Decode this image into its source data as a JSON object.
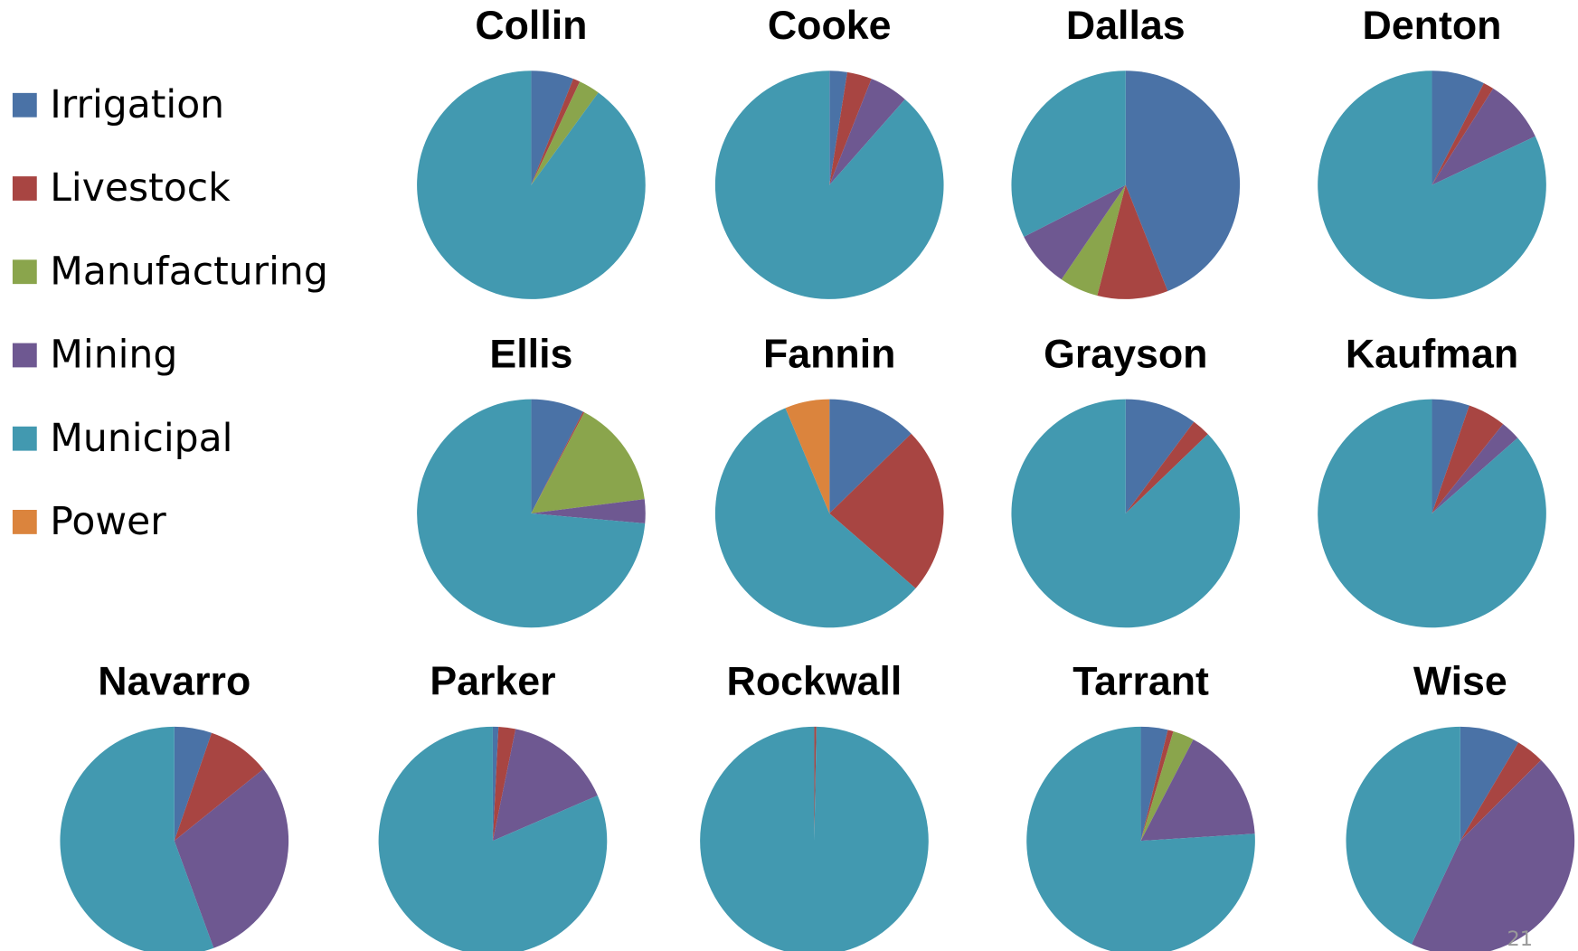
{
  "legend": {
    "categories": [
      "Irrigation",
      "Livestock",
      "Manufacturing",
      "Mining",
      "Municipal",
      "Power"
    ],
    "colors": [
      "#4a72a6",
      "#a84542",
      "#8aa54c",
      "#6e5891",
      "#4299b0",
      "#db843d"
    ]
  },
  "chart_data": [
    {
      "type": "pie",
      "title": "Collin",
      "values": [
        6,
        1,
        3,
        0,
        90,
        0
      ]
    },
    {
      "type": "pie",
      "title": "Cooke",
      "values": [
        2.5,
        3.5,
        0,
        5.5,
        88.5,
        0
      ]
    },
    {
      "type": "pie",
      "title": "Dallas",
      "values": [
        44,
        10,
        5.5,
        8,
        32.5,
        0
      ]
    },
    {
      "type": "pie",
      "title": "Denton",
      "values": [
        7.5,
        1.5,
        0,
        9,
        82,
        0
      ]
    },
    {
      "type": "pie",
      "title": "Ellis",
      "values": [
        7.5,
        0.2,
        15.3,
        3.4,
        73.6,
        0
      ]
    },
    {
      "type": "pie",
      "title": "Fannin",
      "values": [
        12.7,
        23.7,
        0,
        0,
        57.3,
        6.3
      ]
    },
    {
      "type": "pie",
      "title": "Grayson",
      "values": [
        10.2,
        2.6,
        0,
        0,
        87.2,
        0
      ]
    },
    {
      "type": "pie",
      "title": "Kaufman",
      "values": [
        5.3,
        5.4,
        0,
        2.8,
        86.5,
        0
      ]
    },
    {
      "type": "pie",
      "title": "Navarro",
      "values": [
        5.3,
        8.9,
        0,
        30.2,
        55.6,
        0
      ]
    },
    {
      "type": "pie",
      "title": "Parker",
      "values": [
        0.8,
        2.4,
        0,
        15.3,
        81.5,
        0
      ]
    },
    {
      "type": "pie",
      "title": "Rockwall",
      "values": [
        0,
        0.3,
        0,
        0,
        99.7,
        0
      ]
    },
    {
      "type": "pie",
      "title": "Tarrant",
      "values": [
        3.8,
        0.8,
        3,
        16.4,
        76,
        0
      ]
    },
    {
      "type": "pie",
      "title": "Wise",
      "values": [
        8.5,
        4,
        0,
        44.5,
        43,
        0
      ]
    }
  ],
  "page_number": "21"
}
